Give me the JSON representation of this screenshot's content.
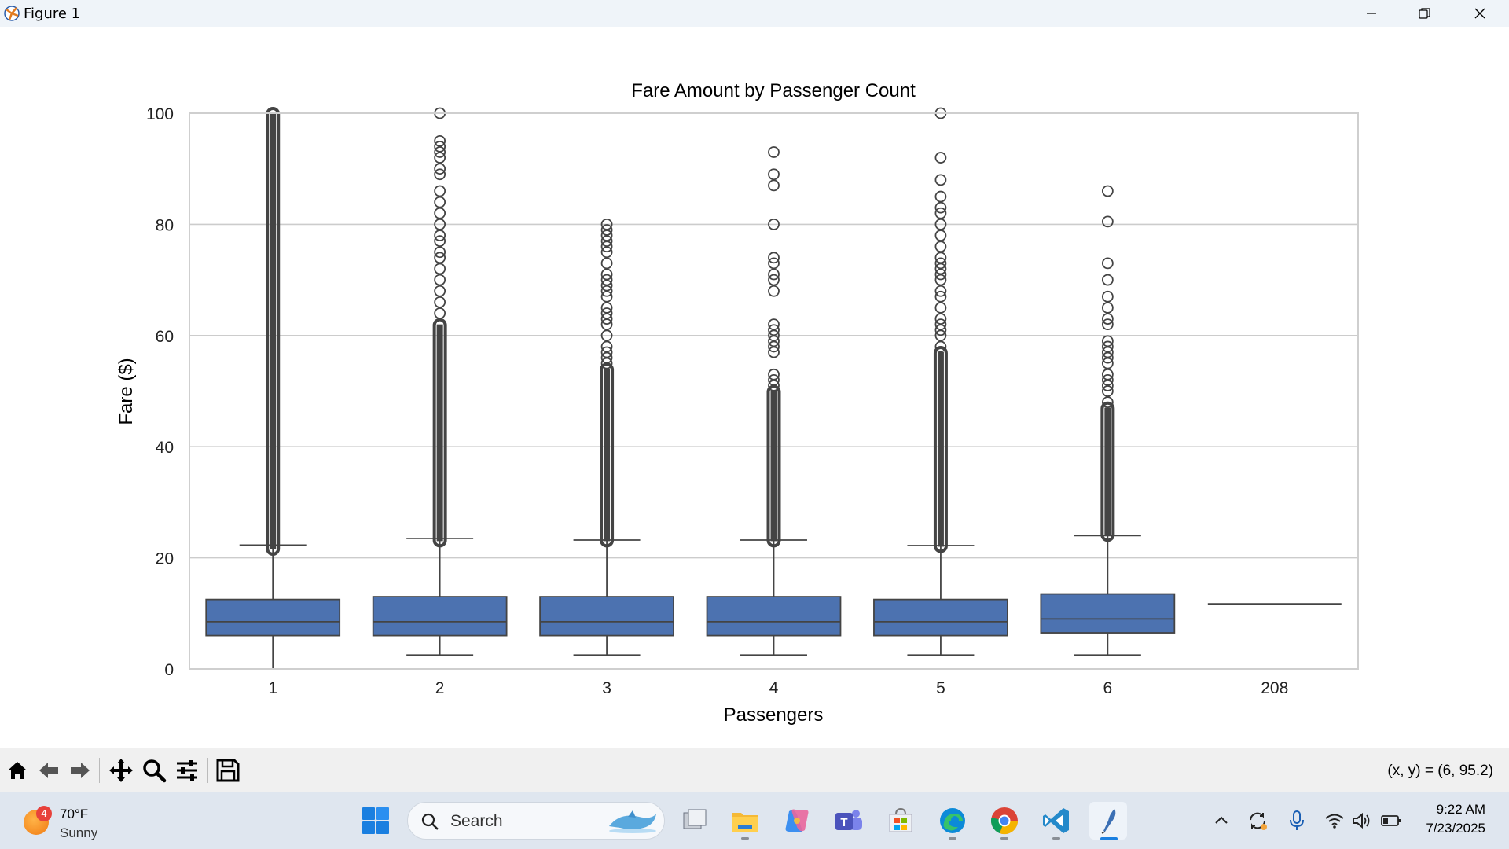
{
  "window": {
    "title": "Figure 1"
  },
  "chart_data": {
    "type": "boxplot",
    "title": "Fare Amount by Passenger Count",
    "xlabel": "Passengers",
    "ylabel": "Fare ($)",
    "ylim": [
      0,
      100
    ],
    "yticks": [
      "0",
      "20",
      "40",
      "60",
      "80",
      "100"
    ],
    "grid": "horizontal",
    "categories": [
      "1",
      "2",
      "3",
      "4",
      "5",
      "6",
      "208"
    ],
    "box_color": "#4c72b0",
    "boxes": [
      {
        "category": "1",
        "whisker_low": 0.0,
        "q1": 6.0,
        "median": 8.5,
        "q3": 12.5,
        "whisker_high": 22.3,
        "outliers_dense": [
          21.5,
          100
        ],
        "outliers": []
      },
      {
        "category": "2",
        "whisker_low": 2.5,
        "q1": 6.0,
        "median": 8.5,
        "q3": 13.0,
        "whisker_high": 23.5,
        "outliers_dense": [
          23.0,
          62
        ],
        "outliers": [
          64,
          66,
          68,
          70,
          72,
          74,
          75,
          77,
          78,
          80,
          82,
          84,
          86,
          89,
          90,
          92,
          93,
          94,
          95,
          100
        ]
      },
      {
        "category": "3",
        "whisker_low": 2.5,
        "q1": 6.0,
        "median": 8.5,
        "q3": 13.0,
        "whisker_high": 23.2,
        "outliers_dense": [
          23.0,
          54
        ],
        "outliers": [
          55,
          56,
          57,
          58,
          60,
          62,
          63,
          64,
          65,
          67,
          68,
          69,
          70,
          71,
          73,
          75,
          76,
          77,
          78,
          79,
          80
        ]
      },
      {
        "category": "4",
        "whisker_low": 2.5,
        "q1": 6.0,
        "median": 8.5,
        "q3": 13.0,
        "whisker_high": 23.2,
        "outliers_dense": [
          23.0,
          50
        ],
        "outliers": [
          51,
          52,
          53,
          57,
          58,
          59,
          60,
          61,
          62,
          68,
          70,
          71,
          73,
          74,
          80,
          87,
          89,
          93
        ]
      },
      {
        "category": "5",
        "whisker_low": 2.5,
        "q1": 6.0,
        "median": 8.5,
        "q3": 12.5,
        "whisker_high": 22.2,
        "outliers_dense": [
          22.0,
          57
        ],
        "outliers": [
          58,
          60,
          61,
          62,
          63,
          65,
          67,
          68,
          70,
          71,
          72,
          73,
          74,
          76,
          78,
          80,
          82,
          83,
          85,
          88,
          92,
          100
        ]
      },
      {
        "category": "6",
        "whisker_low": 2.5,
        "q1": 6.5,
        "median": 9.0,
        "q3": 13.5,
        "whisker_high": 24.0,
        "outliers_dense": [
          24.0,
          47
        ],
        "outliers": [
          48,
          50,
          51,
          52,
          53,
          55,
          56,
          57,
          58,
          59,
          62,
          63,
          65,
          67,
          70,
          73,
          80.5,
          86
        ]
      },
      {
        "category": "208",
        "whisker_low": 11.7,
        "q1": 11.7,
        "median": 11.7,
        "q3": 11.7,
        "whisker_high": 11.7,
        "outliers_dense": null,
        "outliers": []
      }
    ]
  },
  "toolbar": {
    "items": [
      "home-icon",
      "back-icon",
      "forward-icon",
      "pan-icon",
      "zoom-icon",
      "configure-icon",
      "save-icon"
    ],
    "coords": "(x, y) = (6, 95.2)"
  },
  "taskbar": {
    "weather": {
      "temp": "70°F",
      "condition": "Sunny",
      "badge": "4"
    },
    "search_label": "Search",
    "time": "9:22 AM",
    "date": "7/23/2025"
  }
}
